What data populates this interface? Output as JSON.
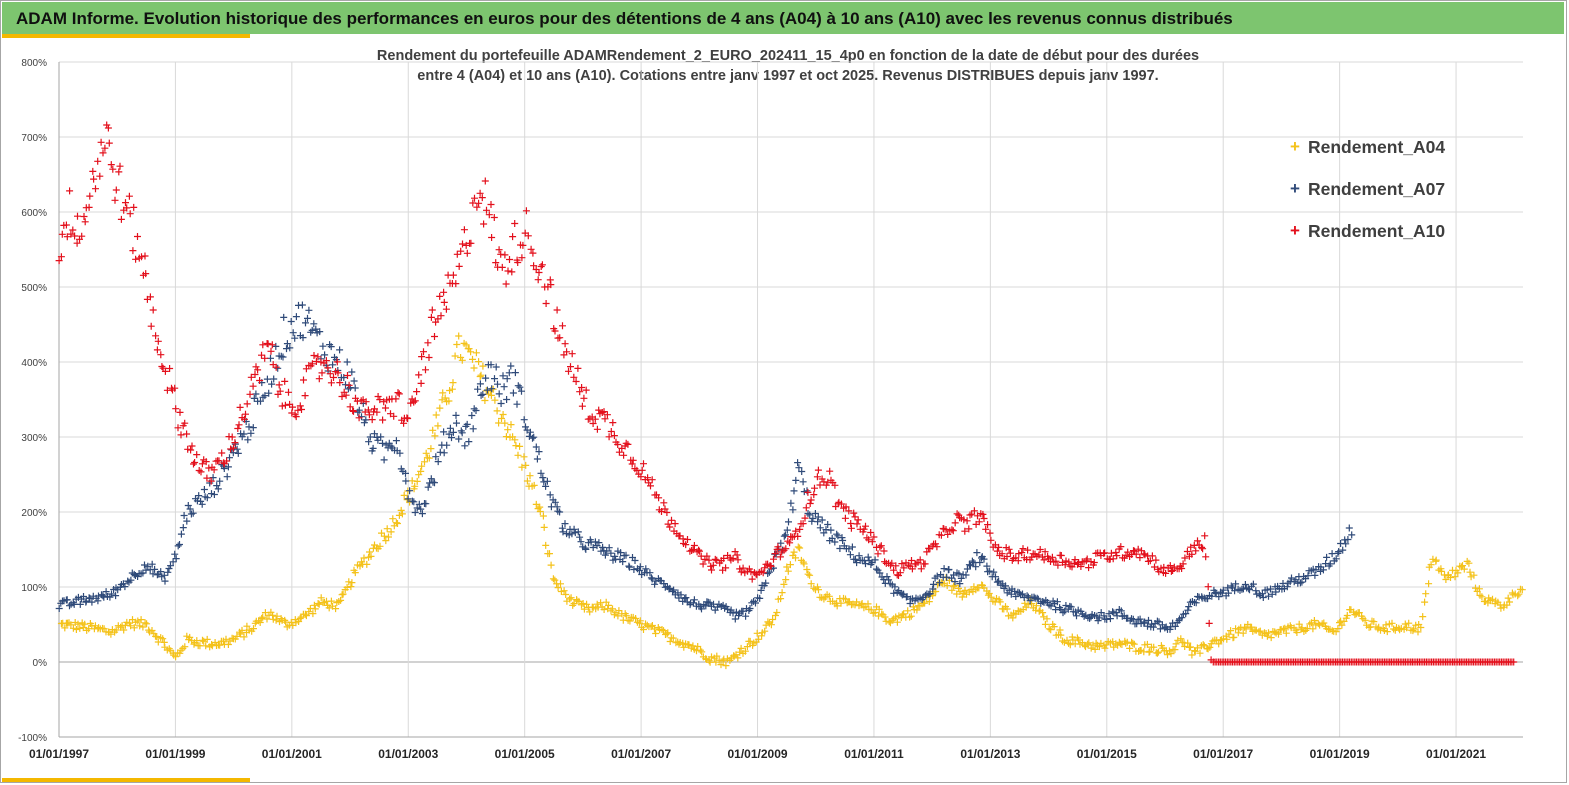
{
  "header": {
    "title": "ADAM Informe. Evolution historique des performances en euros pour des détentions de 4 ans (A04) à 10 ans (A10) avec les revenus connus distribués"
  },
  "colors": {
    "banner": "#7dc56f",
    "accent": "#f4b800",
    "A04": "#f4c21a",
    "A07": "#2f4a79",
    "A10": "#e3101c",
    "grid": "#d9d9d9",
    "axis": "#a6a6a6"
  },
  "chart_data": {
    "type": "scatter",
    "title_line1": "Rendement du portefeuille ADAMRendement_2_EURO_202411_15_4p0  en fonction de la date de début pour des durées",
    "title_line2": "entre 4 (A04) et 10 ans (A10). Cotations entre janv 1997 et oct 2025. Revenus DISTRIBUES depuis janv 1997.",
    "xlabel": "",
    "ylabel": "",
    "x_unit": "year",
    "xlim": [
      1997.0,
      2022.0
    ],
    "ylim": [
      -100,
      800
    ],
    "y_ticks": [
      -100,
      0,
      100,
      200,
      300,
      400,
      500,
      600,
      700,
      800
    ],
    "y_tick_labels": [
      "-100%",
      "0%",
      "100%",
      "200%",
      "300%",
      "400%",
      "500%",
      "600%",
      "700%",
      "800%"
    ],
    "x_ticks": [
      1997,
      1999,
      2001,
      2003,
      2005,
      2007,
      2009,
      2011,
      2013,
      2015,
      2017,
      2019,
      2021
    ],
    "x_tick_labels": [
      "01/01/1997",
      "01/01/1999",
      "01/01/2001",
      "01/01/2003",
      "01/01/2005",
      "01/01/2007",
      "01/01/2009",
      "01/01/2011",
      "01/01/2013",
      "01/01/2015",
      "01/01/2017",
      "01/01/2019",
      "01/01/2021"
    ],
    "marker": "+",
    "legend_position": "top-right",
    "series": [
      {
        "name": "Rendement_A04",
        "color": "#f4c21a",
        "points": [
          [
            1997.0,
            50
          ],
          [
            1997.3,
            48
          ],
          [
            1997.6,
            45
          ],
          [
            1997.9,
            40
          ],
          [
            1998.2,
            52
          ],
          [
            1998.5,
            50
          ],
          [
            1998.8,
            25
          ],
          [
            1999.0,
            5
          ],
          [
            1999.2,
            30
          ],
          [
            1999.5,
            25
          ],
          [
            1999.8,
            25
          ],
          [
            2000.0,
            30
          ],
          [
            2000.3,
            45
          ],
          [
            2000.6,
            65
          ],
          [
            2000.9,
            50
          ],
          [
            2001.2,
            60
          ],
          [
            2001.5,
            80
          ],
          [
            2001.8,
            75
          ],
          [
            2002.1,
            120
          ],
          [
            2002.4,
            150
          ],
          [
            2002.7,
            180
          ],
          [
            2003.0,
            220
          ],
          [
            2003.3,
            270
          ],
          [
            2003.6,
            340
          ],
          [
            2003.9,
            420
          ],
          [
            2004.1,
            400
          ],
          [
            2004.4,
            360
          ],
          [
            2004.6,
            330
          ],
          [
            2004.9,
            280
          ],
          [
            2005.1,
            240
          ],
          [
            2005.3,
            190
          ],
          [
            2005.5,
            110
          ],
          [
            2005.8,
            80
          ],
          [
            2006.1,
            70
          ],
          [
            2006.4,
            75
          ],
          [
            2006.7,
            60
          ],
          [
            2007.0,
            50
          ],
          [
            2007.3,
            40
          ],
          [
            2007.6,
            30
          ],
          [
            2007.9,
            20
          ],
          [
            2008.2,
            5
          ],
          [
            2008.5,
            0
          ],
          [
            2008.8,
            20
          ],
          [
            2009.1,
            40
          ],
          [
            2009.3,
            60
          ],
          [
            2009.5,
            120
          ],
          [
            2009.7,
            150
          ],
          [
            2009.9,
            110
          ],
          [
            2010.1,
            90
          ],
          [
            2010.4,
            80
          ],
          [
            2010.7,
            75
          ],
          [
            2011.0,
            70
          ],
          [
            2011.3,
            55
          ],
          [
            2011.6,
            65
          ],
          [
            2011.9,
            80
          ],
          [
            2012.2,
            110
          ],
          [
            2012.5,
            90
          ],
          [
            2012.8,
            105
          ],
          [
            2013.1,
            80
          ],
          [
            2013.4,
            60
          ],
          [
            2013.7,
            80
          ],
          [
            2014.0,
            50
          ],
          [
            2014.3,
            30
          ],
          [
            2014.6,
            25
          ],
          [
            2014.9,
            20
          ],
          [
            2015.2,
            25
          ],
          [
            2015.5,
            20
          ],
          [
            2015.8,
            18
          ],
          [
            2016.1,
            15
          ],
          [
            2016.3,
            30
          ],
          [
            2016.5,
            10
          ],
          [
            2016.8,
            25
          ],
          [
            2017.1,
            35
          ],
          [
            2017.4,
            45
          ],
          [
            2017.7,
            35
          ],
          [
            2018.0,
            40
          ],
          [
            2018.3,
            45
          ],
          [
            2018.6,
            50
          ],
          [
            2018.9,
            40
          ],
          [
            2019.2,
            70
          ],
          [
            2019.5,
            50
          ],
          [
            2019.8,
            45
          ],
          [
            2020.1,
            48
          ],
          [
            2020.4,
            45
          ],
          [
            2020.6,
            145
          ],
          [
            2020.8,
            110
          ],
          [
            2021.0,
            120
          ],
          [
            2021.2,
            130
          ],
          [
            2021.4,
            90
          ],
          [
            2021.6,
            80
          ],
          [
            2021.8,
            75
          ],
          [
            2022.0,
            90
          ],
          [
            2022.2,
            105
          ]
        ]
      },
      {
        "name": "Rendement_A07",
        "color": "#2f4a79",
        "points": [
          [
            1997.0,
            75
          ],
          [
            1997.3,
            80
          ],
          [
            1997.6,
            85
          ],
          [
            1997.9,
            90
          ],
          [
            1998.2,
            110
          ],
          [
            1998.5,
            130
          ],
          [
            1998.8,
            110
          ],
          [
            1999.0,
            140
          ],
          [
            1999.2,
            200
          ],
          [
            1999.5,
            220
          ],
          [
            1999.8,
            250
          ],
          [
            2000.0,
            280
          ],
          [
            2000.3,
            320
          ],
          [
            2000.6,
            380
          ],
          [
            2000.9,
            440
          ],
          [
            2001.2,
            460
          ],
          [
            2001.5,
            420
          ],
          [
            2001.8,
            400
          ],
          [
            2002.0,
            380
          ],
          [
            2002.2,
            330
          ],
          [
            2002.4,
            290
          ],
          [
            2002.6,
            280
          ],
          [
            2002.8,
            300
          ],
          [
            2003.0,
            230
          ],
          [
            2003.2,
            200
          ],
          [
            2003.4,
            240
          ],
          [
            2003.6,
            290
          ],
          [
            2003.8,
            320
          ],
          [
            2004.0,
            300
          ],
          [
            2004.2,
            350
          ],
          [
            2004.4,
            390
          ],
          [
            2004.6,
            360
          ],
          [
            2004.8,
            380
          ],
          [
            2005.0,
            330
          ],
          [
            2005.2,
            280
          ],
          [
            2005.4,
            230
          ],
          [
            2005.6,
            190
          ],
          [
            2005.8,
            170
          ],
          [
            2006.0,
            160
          ],
          [
            2006.3,
            150
          ],
          [
            2006.6,
            140
          ],
          [
            2006.9,
            130
          ],
          [
            2007.2,
            110
          ],
          [
            2007.5,
            100
          ],
          [
            2007.8,
            80
          ],
          [
            2008.1,
            75
          ],
          [
            2008.4,
            70
          ],
          [
            2008.7,
            60
          ],
          [
            2009.0,
            80
          ],
          [
            2009.2,
            120
          ],
          [
            2009.5,
            170
          ],
          [
            2009.7,
            260
          ],
          [
            2009.9,
            200
          ],
          [
            2010.1,
            180
          ],
          [
            2010.4,
            160
          ],
          [
            2010.7,
            140
          ],
          [
            2011.0,
            130
          ],
          [
            2011.3,
            100
          ],
          [
            2011.6,
            80
          ],
          [
            2011.9,
            90
          ],
          [
            2012.2,
            120
          ],
          [
            2012.5,
            110
          ],
          [
            2012.8,
            140
          ],
          [
            2013.1,
            110
          ],
          [
            2013.4,
            90
          ],
          [
            2013.7,
            85
          ],
          [
            2014.0,
            80
          ],
          [
            2014.3,
            70
          ],
          [
            2014.6,
            65
          ],
          [
            2014.9,
            60
          ],
          [
            2015.2,
            65
          ],
          [
            2015.5,
            55
          ],
          [
            2015.8,
            50
          ],
          [
            2016.1,
            45
          ],
          [
            2016.3,
            60
          ],
          [
            2016.5,
            80
          ],
          [
            2016.8,
            90
          ],
          [
            2017.1,
            95
          ],
          [
            2017.4,
            105
          ],
          [
            2017.7,
            90
          ],
          [
            2018.0,
            100
          ],
          [
            2018.3,
            110
          ],
          [
            2018.6,
            120
          ],
          [
            2018.9,
            140
          ],
          [
            2019.2,
            175
          ]
        ]
      },
      {
        "name": "Rendement_A10",
        "color": "#e3101c",
        "points": [
          [
            1997.0,
            560
          ],
          [
            1997.2,
            600
          ],
          [
            1997.4,
            580
          ],
          [
            1997.6,
            650
          ],
          [
            1997.8,
            700
          ],
          [
            1998.0,
            640
          ],
          [
            1998.2,
            590
          ],
          [
            1998.4,
            550
          ],
          [
            1998.6,
            460
          ],
          [
            1998.8,
            400
          ],
          [
            1999.0,
            340
          ],
          [
            1999.2,
            300
          ],
          [
            1999.4,
            260
          ],
          [
            1999.6,
            250
          ],
          [
            1999.8,
            270
          ],
          [
            2000.0,
            300
          ],
          [
            2000.2,
            340
          ],
          [
            2000.4,
            380
          ],
          [
            2000.6,
            420
          ],
          [
            2000.8,
            360
          ],
          [
            2001.0,
            340
          ],
          [
            2001.2,
            360
          ],
          [
            2001.4,
            390
          ],
          [
            2001.6,
            400
          ],
          [
            2001.8,
            380
          ],
          [
            2002.0,
            360
          ],
          [
            2002.2,
            330
          ],
          [
            2002.4,
            340
          ],
          [
            2002.6,
            330
          ],
          [
            2002.8,
            350
          ],
          [
            2003.0,
            320
          ],
          [
            2003.2,
            380
          ],
          [
            2003.4,
            440
          ],
          [
            2003.6,
            470
          ],
          [
            2003.8,
            510
          ],
          [
            2004.0,
            560
          ],
          [
            2004.2,
            640
          ],
          [
            2004.4,
            590
          ],
          [
            2004.6,
            520
          ],
          [
            2004.8,
            550
          ],
          [
            2005.0,
            580
          ],
          [
            2005.2,
            540
          ],
          [
            2005.4,
            500
          ],
          [
            2005.6,
            430
          ],
          [
            2005.8,
            400
          ],
          [
            2006.0,
            350
          ],
          [
            2006.2,
            330
          ],
          [
            2006.4,
            320
          ],
          [
            2006.6,
            300
          ],
          [
            2006.8,
            280
          ],
          [
            2007.0,
            260
          ],
          [
            2007.2,
            230
          ],
          [
            2007.4,
            200
          ],
          [
            2007.6,
            180
          ],
          [
            2007.8,
            160
          ],
          [
            2008.0,
            140
          ],
          [
            2008.2,
            130
          ],
          [
            2008.4,
            130
          ],
          [
            2008.6,
            140
          ],
          [
            2008.8,
            120
          ],
          [
            2009.0,
            115
          ],
          [
            2009.2,
            130
          ],
          [
            2009.4,
            150
          ],
          [
            2009.6,
            160
          ],
          [
            2009.8,
            200
          ],
          [
            2010.0,
            240
          ],
          [
            2010.2,
            250
          ],
          [
            2010.4,
            210
          ],
          [
            2010.6,
            190
          ],
          [
            2010.8,
            180
          ],
          [
            2011.0,
            160
          ],
          [
            2011.2,
            140
          ],
          [
            2011.4,
            120
          ],
          [
            2011.6,
            130
          ],
          [
            2011.8,
            130
          ],
          [
            2012.0,
            150
          ],
          [
            2012.2,
            170
          ],
          [
            2012.4,
            190
          ],
          [
            2012.6,
            180
          ],
          [
            2012.8,
            200
          ],
          [
            2013.1,
            150
          ],
          [
            2013.4,
            140
          ],
          [
            2013.7,
            145
          ],
          [
            2014.0,
            140
          ],
          [
            2014.3,
            135
          ],
          [
            2014.6,
            130
          ],
          [
            2014.9,
            140
          ],
          [
            2015.2,
            145
          ],
          [
            2015.5,
            150
          ],
          [
            2015.8,
            135
          ],
          [
            2016.0,
            120
          ],
          [
            2016.3,
            130
          ],
          [
            2016.5,
            155
          ],
          [
            2016.7,
            160
          ],
          [
            2016.8,
            0
          ],
          [
            2017.2,
            0
          ],
          [
            2017.6,
            0
          ],
          [
            2018.0,
            0
          ],
          [
            2018.4,
            0
          ],
          [
            2018.8,
            0
          ],
          [
            2019.2,
            0
          ],
          [
            2019.6,
            0
          ],
          [
            2020.0,
            0
          ],
          [
            2020.4,
            0
          ],
          [
            2020.8,
            0
          ],
          [
            2021.2,
            0
          ],
          [
            2021.6,
            0
          ],
          [
            2022.0,
            0
          ]
        ]
      }
    ]
  }
}
